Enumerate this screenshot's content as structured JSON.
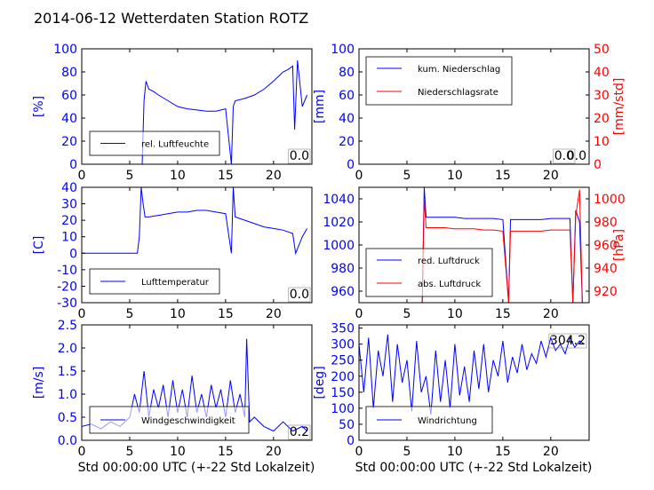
{
  "chart_data": {
    "title": "2014-06-12 Wetterdaten Station ROTZ",
    "xlabel": "Std 00:00:00 UTC (+-22 Std Lokalzeit)",
    "colors": {
      "left_axis": "#0000ff",
      "right_axis": "#ff0000",
      "text": "#000000"
    },
    "charts": [
      {
        "id": "humidity",
        "type": "line",
        "ylabel": "[%]",
        "xlim": [
          0,
          24
        ],
        "ylim": [
          0,
          100
        ],
        "xticks": [
          "0",
          "5",
          "10",
          "15",
          "20"
        ],
        "yticks": [
          "0",
          "20",
          "40",
          "60",
          "80",
          "100"
        ],
        "current_value": "0.0",
        "series": [
          {
            "name": "rel. Luftfeuchte",
            "color": "#0000ff",
            "x": [
              0,
              6.3,
              6.5,
              6.7,
              7,
              7.5,
              8,
              9,
              10,
              11,
              12,
              13,
              14,
              15,
              15.6,
              15.8,
              16,
              17,
              18,
              19,
              20,
              21,
              21.5,
              22,
              22.2,
              22.5,
              23,
              23.5
            ],
            "y": [
              0,
              0,
              55,
              72,
              65,
              63,
              60,
              55,
              50,
              48,
              47,
              46,
              46,
              48,
              0,
              50,
              55,
              57,
              60,
              65,
              72,
              80,
              82,
              85,
              30,
              90,
              50,
              60
            ]
          }
        ]
      },
      {
        "id": "precipitation",
        "type": "line",
        "ylabel": "[mm]",
        "y2label": "[mm/std]",
        "xlim": [
          0,
          24
        ],
        "ylim": [
          0,
          100
        ],
        "y2lim": [
          0,
          50
        ],
        "xticks": [
          "0",
          "5",
          "10",
          "15",
          "20"
        ],
        "yticks": [
          "0",
          "20",
          "40",
          "60",
          "80",
          "100"
        ],
        "y2ticks": [
          "0",
          "10",
          "20",
          "30",
          "40",
          "50"
        ],
        "current_value": "0.0",
        "current_value_2": "0.0",
        "series": [
          {
            "name": "kum. Niederschlag",
            "color": "#0000ff",
            "x": [
              0,
              24
            ],
            "y": [
              0,
              0
            ]
          },
          {
            "name": "Niederschlagsrate",
            "color": "#ff0000",
            "x": [
              0,
              24
            ],
            "y": [
              0,
              0
            ]
          }
        ]
      },
      {
        "id": "temperature",
        "type": "line",
        "ylabel": "[C]",
        "xlim": [
          0,
          24
        ],
        "ylim": [
          -30,
          40
        ],
        "xticks": [
          "0",
          "5",
          "10",
          "15",
          "20"
        ],
        "yticks": [
          "-30",
          "-20",
          "-10",
          "0",
          "10",
          "20",
          "30",
          "40"
        ],
        "current_value": "0.0",
        "series": [
          {
            "name": "Lufttemperatur",
            "color": "#0000ff",
            "x": [
              0,
              5.8,
              6,
              6.2,
              6.4,
              6.6,
              7,
              8,
              9,
              10,
              11,
              12,
              13,
              14,
              15,
              15.6,
              15.8,
              16,
              17,
              18,
              19,
              20,
              21,
              22,
              22.3,
              23,
              23.5
            ],
            "y": [
              0,
              0,
              10,
              40,
              30,
              22,
              22,
              23,
              24,
              25,
              25,
              26,
              26,
              25,
              24,
              0,
              40,
              22,
              20,
              18,
              16,
              15,
              14,
              12,
              0,
              10,
              15
            ]
          }
        ]
      },
      {
        "id": "pressure",
        "type": "line",
        "ylabel": "",
        "y2label": "[hPa]",
        "xlim": [
          0,
          24
        ],
        "ylim": [
          950,
          1050
        ],
        "y2lim": [
          910,
          1010
        ],
        "xticks": [
          "0",
          "5",
          "10",
          "15",
          "20"
        ],
        "yticks": [
          "960",
          "980",
          "1000",
          "1020",
          "1040"
        ],
        "y2ticks": [
          "920",
          "940",
          "960",
          "980",
          "1000"
        ],
        "series": [
          {
            "name": "red. Luftdruck",
            "color": "#0000ff",
            "x": [
              6.6,
              6.8,
              7,
              7.2,
              8,
              9,
              10,
              11,
              12,
              13,
              14,
              15,
              15.6,
              15.8,
              16,
              17,
              18,
              19,
              20,
              21,
              22,
              22.3,
              22.6,
              23,
              23.3
            ],
            "y": [
              950,
              1050,
              1024,
              1024,
              1024,
              1024,
              1024,
              1023,
              1023,
              1023,
              1023,
              1022,
              950,
              1022,
              1022,
              1022,
              1022,
              1022,
              1023,
              1023,
              1023,
              950,
              1030,
              1020,
              950
            ]
          },
          {
            "name": "abs. Luftdruck",
            "color": "#ff0000",
            "x": [
              6.6,
              6.8,
              7,
              7.2,
              8,
              9,
              10,
              11,
              12,
              13,
              14,
              15,
              15.6,
              15.8,
              16,
              17,
              18,
              19,
              20,
              21,
              22,
              22.3,
              22.6,
              23,
              23.3
            ],
            "y": [
              910,
              1000,
              975,
              975,
              975,
              975,
              974,
              974,
              974,
              973,
              973,
              972,
              910,
              972,
              972,
              972,
              972,
              972,
              973,
              973,
              973,
              910,
              985,
              1008,
              910
            ]
          }
        ]
      },
      {
        "id": "wind_speed",
        "type": "line",
        "ylabel": "[m/s]",
        "xlim": [
          0,
          24
        ],
        "ylim": [
          0,
          2.5
        ],
        "xticks": [
          "0",
          "5",
          "10",
          "15",
          "20"
        ],
        "yticks": [
          "0.0",
          "0.5",
          "1.0",
          "1.5",
          "2.0",
          "2.5"
        ],
        "current_value": "0.2",
        "series": [
          {
            "name": "Windgeschwindigkeit",
            "color": "#0000ff",
            "x": [
              0,
              1,
              2,
              3,
              4,
              5,
              5.5,
              6,
              6.5,
              7,
              7.5,
              8,
              8.5,
              9,
              9.5,
              10,
              10.5,
              11,
              11.5,
              12,
              12.5,
              13,
              13.5,
              14,
              14.5,
              15,
              15.5,
              16,
              16.5,
              17,
              17.2,
              17.5,
              18,
              19,
              20,
              21,
              22,
              23,
              23.5
            ],
            "y": [
              0.3,
              0.35,
              0.25,
              0.4,
              0.3,
              0.5,
              1.0,
              0.6,
              1.5,
              0.5,
              1.1,
              0.7,
              1.2,
              0.5,
              1.3,
              0.6,
              1.1,
              0.5,
              1.4,
              0.6,
              1.0,
              0.5,
              1.2,
              0.7,
              1.1,
              0.5,
              1.3,
              0.6,
              1.0,
              0.5,
              2.2,
              0.4,
              0.5,
              0.3,
              0.2,
              0.4,
              0.2,
              0.3,
              0.2
            ]
          }
        ]
      },
      {
        "id": "wind_direction",
        "type": "line",
        "ylabel": "[deg]",
        "xlim": [
          0,
          24
        ],
        "ylim": [
          0,
          360
        ],
        "xticks": [
          "0",
          "5",
          "10",
          "15",
          "20"
        ],
        "yticks": [
          "0",
          "50",
          "100",
          "150",
          "200",
          "250",
          "300",
          "350"
        ],
        "current_value": "304.2",
        "series": [
          {
            "name": "Windrichtung",
            "color": "#0000ff",
            "x": [
              0,
              0.5,
              1,
              1.5,
              2,
              2.5,
              3,
              3.5,
              4,
              4.5,
              5,
              5.5,
              6,
              6.5,
              7,
              7.5,
              8,
              8.5,
              9,
              9.5,
              10,
              10.5,
              11,
              11.5,
              12,
              12.5,
              13,
              13.5,
              14,
              14.5,
              15,
              15.5,
              16,
              16.5,
              17,
              17.5,
              18,
              18.5,
              19,
              19.5,
              20,
              20.5,
              21,
              21.5,
              22,
              22.5,
              23,
              23.5
            ],
            "y": [
              300,
              150,
              320,
              100,
              280,
              200,
              330,
              120,
              300,
              180,
              250,
              90,
              310,
              150,
              200,
              80,
              280,
              120,
              250,
              100,
              300,
              140,
              230,
              120,
              280,
              160,
              300,
              150,
              250,
              200,
              310,
              180,
              260,
              210,
              300,
              220,
              270,
              240,
              310,
              260,
              320,
              280,
              300,
              270,
              320,
              290,
              310,
              300
            ]
          }
        ]
      }
    ]
  }
}
